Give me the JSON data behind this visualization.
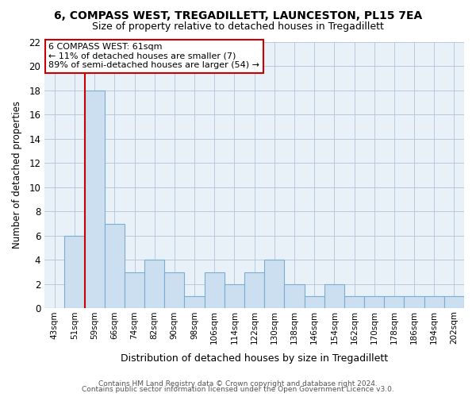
{
  "title": "6, COMPASS WEST, TREGADILLETT, LAUNCESTON, PL15 7EA",
  "subtitle": "Size of property relative to detached houses in Tregadillett",
  "xlabel": "Distribution of detached houses by size in Tregadillett",
  "ylabel": "Number of detached properties",
  "bar_labels": [
    "43sqm",
    "51sqm",
    "59sqm",
    "66sqm",
    "74sqm",
    "82sqm",
    "90sqm",
    "98sqm",
    "106sqm",
    "114sqm",
    "122sqm",
    "130sqm",
    "138sqm",
    "146sqm",
    "154sqm",
    "162sqm",
    "170sqm",
    "178sqm",
    "186sqm",
    "194sqm",
    "202sqm"
  ],
  "bar_values": [
    0,
    6,
    18,
    7,
    3,
    4,
    3,
    1,
    3,
    2,
    3,
    4,
    2,
    1,
    2,
    1,
    1,
    1,
    1,
    1,
    1
  ],
  "bar_fill_color": "#ccdff0",
  "bar_edge_color": "#7aadd0",
  "plot_bg_color": "#e8f0f8",
  "vline_color": "#cc0000",
  "vline_x_index": 2,
  "annotation_text_line1": "6 COMPASS WEST: 61sqm",
  "annotation_text_line2": "← 11% of detached houses are smaller (7)",
  "annotation_text_line3": "89% of semi-detached houses are larger (54) →",
  "ylim": [
    0,
    22
  ],
  "yticks": [
    0,
    2,
    4,
    6,
    8,
    10,
    12,
    14,
    16,
    18,
    20,
    22
  ],
  "footer_line1": "Contains HM Land Registry data © Crown copyright and database right 2024.",
  "footer_line2": "Contains public sector information licensed under the Open Government Licence v3.0.",
  "background_color": "#ffffff",
  "grid_color": "#b0c4d8",
  "title_fontsize": 10,
  "subtitle_fontsize": 9
}
